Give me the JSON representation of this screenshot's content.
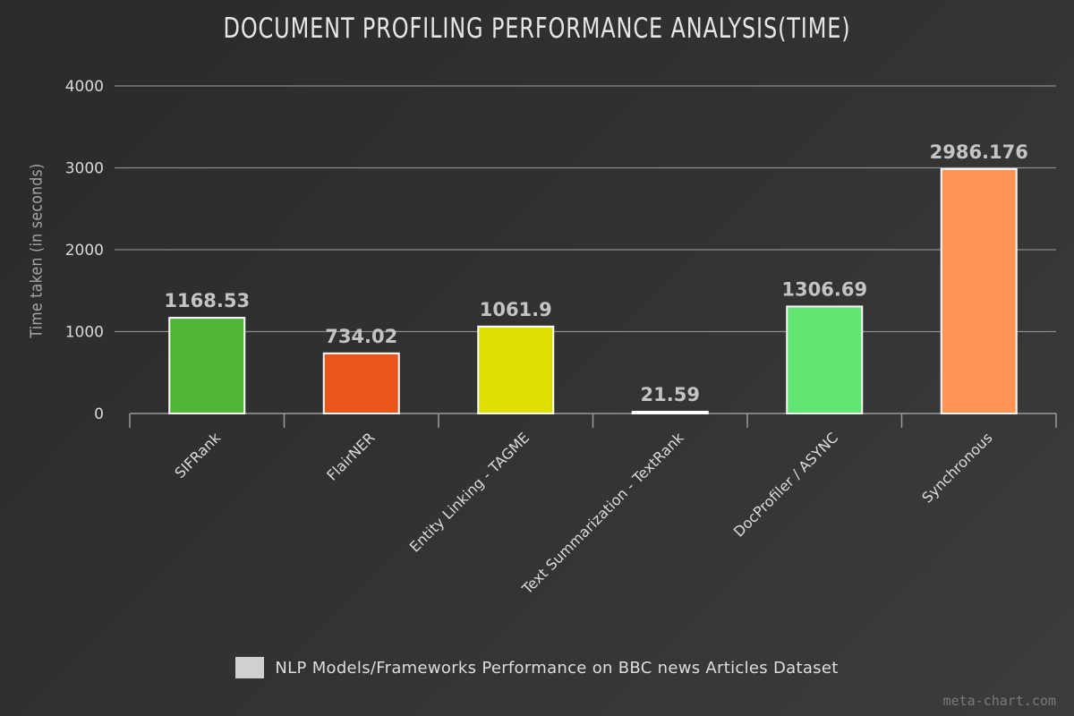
{
  "chart_data": {
    "type": "bar",
    "title": "DOCUMENT PROFILING PERFORMANCE ANALYSIS(TIME)",
    "ylabel": "Time taken (in seconds)",
    "xlabel": "",
    "ylim": [
      0,
      4000
    ],
    "yticks": [
      0,
      1000,
      2000,
      3000,
      4000
    ],
    "grid": true,
    "legend_position": "bottom",
    "categories": [
      "SIFRank",
      "FlairNER",
      "Entity Linking - TAGME",
      "Text Summarization - TextRank",
      "DocProfiler / ASYNC",
      "Synchronous"
    ],
    "values": [
      1168.53,
      734.02,
      1061.9,
      21.59,
      1306.69,
      2986.176
    ],
    "value_labels": [
      "1168.53",
      "734.02",
      "1061.9",
      "21.59",
      "1306.69",
      "2986.176"
    ],
    "colors": [
      "#4fb534",
      "#ea551c",
      "#dde000",
      "#ffffff",
      "#62e473",
      "#fe9554"
    ],
    "series": [
      {
        "name": "NLP Models/Frameworks Performance on BBC news Articles Dataset",
        "color": "#d0d0d0"
      }
    ]
  },
  "watermark": "meta-chart.com"
}
